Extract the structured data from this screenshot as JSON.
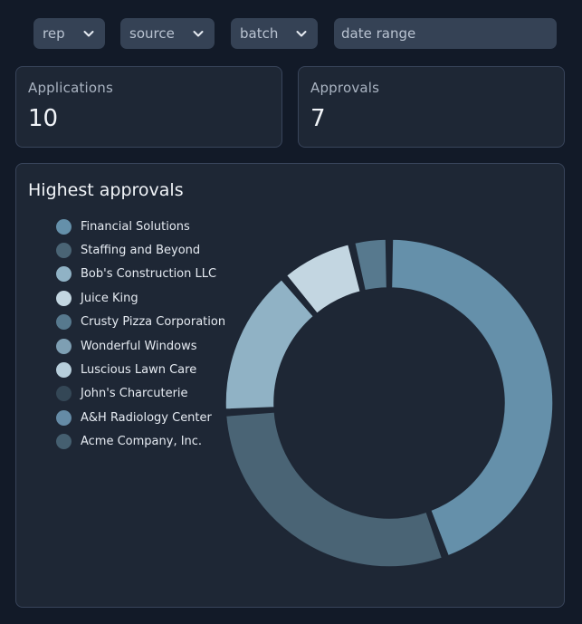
{
  "filters": {
    "rep_label": "rep",
    "source_label": "source",
    "batch_label": "batch",
    "date_placeholder": "date range"
  },
  "stats": {
    "applications": {
      "label": "Applications",
      "value": "10"
    },
    "approvals": {
      "label": "Approvals",
      "value": "7"
    }
  },
  "chart_data": {
    "type": "pie",
    "variant": "donut",
    "title": "Highest approvals",
    "legend_position": "left",
    "categories": [
      "Financial Solutions",
      "Staffing and Beyond",
      "Bob's Construction LLC",
      "Juice King",
      "Crusty Pizza Corporation",
      "Wonderful Windows",
      "Luscious Lawn Care",
      "John's Charcuterie",
      "A&H Radiology Center",
      "Acme Company, Inc."
    ],
    "values": [
      3,
      2,
      1,
      0.5,
      0.25,
      0,
      0,
      0,
      0,
      0
    ],
    "colors": [
      "#6590aa",
      "#4a6475",
      "#90b2c5",
      "#c3d6e1",
      "#57798e",
      "#7e9fb3",
      "#b7cedb",
      "#344756",
      "#658ba6",
      "#455f70"
    ]
  }
}
